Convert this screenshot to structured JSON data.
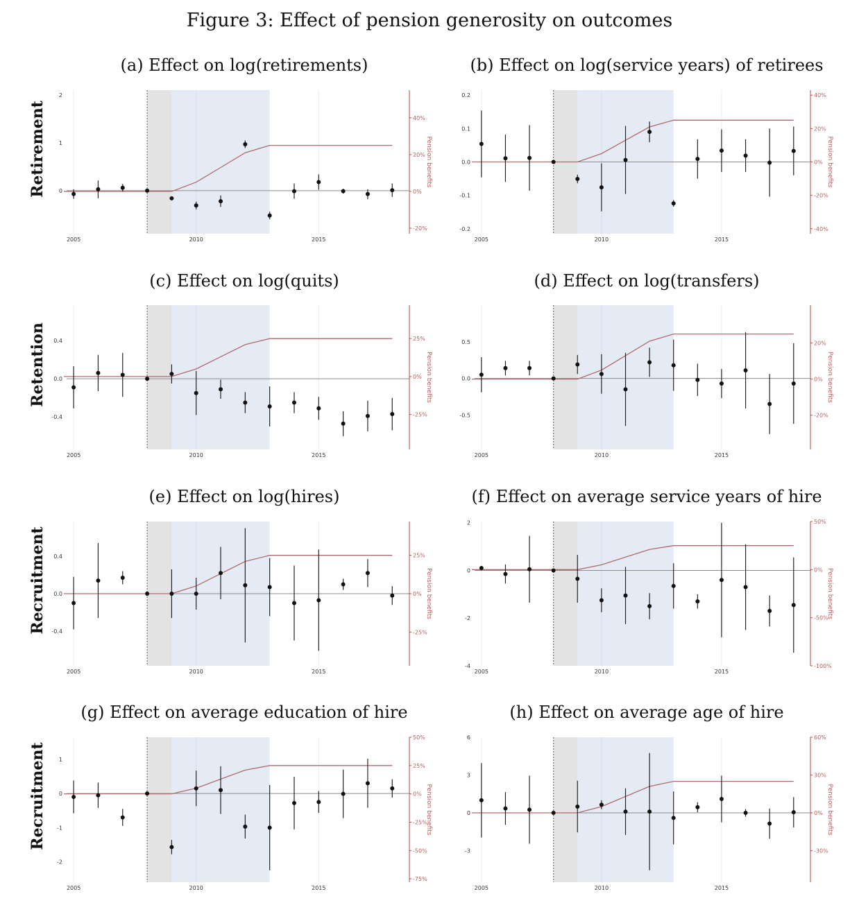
{
  "figure_title": "Figure 3: Effect of pension generosity on outcomes",
  "row_labels": [
    "Retirement",
    "Retention",
    "Recruitment",
    "Recruitment"
  ],
  "colors": {
    "point": "#111111",
    "pension_line": "#b06a6f",
    "shade_gray": "#e3e3e3",
    "shade_blue": "#e4ebf5",
    "right_axis": "#b04a4a",
    "zero_line": "#8a8a8a"
  },
  "chart_data": [
    {
      "panel": "(a)",
      "type": "scatter",
      "title": "(a) Effect on log(retirements)",
      "right_axis_label": "Pension benefits",
      "xticks": [
        2005,
        2010,
        2015
      ],
      "xlim": [
        2004.6,
        2018.7
      ],
      "yticks": [
        {
          "v": 2,
          "l": "2"
        },
        {
          "v": 1,
          "l": "1"
        },
        {
          "v": 0,
          "l": "0"
        }
      ],
      "ylim": [
        -0.9,
        2.1
      ],
      "rticks": [
        {
          "v": 40,
          "l": "40%"
        },
        {
          "v": 20,
          "l": "20%"
        },
        {
          "v": 0,
          "l": "0%"
        },
        {
          "v": -20,
          "l": "-20%"
        }
      ],
      "rlim": [
        -23,
        55
      ],
      "x": [
        2005,
        2006,
        2007,
        2008,
        2009,
        2010,
        2011,
        2012,
        2013,
        2014,
        2015,
        2016,
        2017,
        2018
      ],
      "y": [
        -0.07,
        0.03,
        0.06,
        0.0,
        -0.16,
        -0.31,
        -0.22,
        0.97,
        -0.52,
        -0.01,
        0.18,
        -0.01,
        -0.07,
        0.01
      ],
      "ci_low": [
        -0.17,
        -0.16,
        -0.02,
        0.0,
        -0.16,
        -0.39,
        -0.34,
        0.89,
        -0.6,
        -0.17,
        0.02,
        -0.06,
        -0.18,
        -0.13
      ],
      "ci_high": [
        0.03,
        0.21,
        0.14,
        0.0,
        -0.16,
        -0.23,
        -0.1,
        1.05,
        -0.44,
        0.15,
        0.34,
        0.04,
        0.03,
        0.15
      ],
      "pension": [
        0,
        0,
        0,
        0,
        0,
        5,
        13,
        21,
        25,
        25,
        25,
        25,
        25,
        25
      ],
      "pension_x": [
        2004.6,
        2009,
        2010,
        2011,
        2012,
        2013,
        2018
      ]
    },
    {
      "panel": "(b)",
      "type": "scatter",
      "title": "(b) Effect on log(service years) of retirees",
      "right_axis_label": "Pension benefits",
      "xticks": [
        2005,
        2010,
        2015
      ],
      "xlim": [
        2004.6,
        2018.7
      ],
      "yticks": [
        {
          "v": 0.2,
          "l": "0.2"
        },
        {
          "v": 0.1,
          "l": "0.1"
        },
        {
          "v": 0,
          "l": "0.0"
        },
        {
          "v": -0.1,
          "l": "-0.1"
        },
        {
          "v": -0.2,
          "l": "-0.2"
        }
      ],
      "ylim": [
        -0.215,
        0.215
      ],
      "rticks": [
        {
          "v": 40,
          "l": "40%"
        },
        {
          "v": 20,
          "l": "20%"
        },
        {
          "v": 0,
          "l": "0%"
        },
        {
          "v": -20,
          "l": "-20%"
        },
        {
          "v": -40,
          "l": "-40%"
        }
      ],
      "rlim": [
        -43,
        43
      ],
      "x": [
        2005,
        2006,
        2007,
        2008,
        2009,
        2010,
        2011,
        2012,
        2013,
        2014,
        2015,
        2016,
        2017,
        2018
      ],
      "y": [
        0.054,
        0.011,
        0.012,
        0.0,
        -0.051,
        -0.076,
        0.006,
        0.09,
        -0.124,
        0.009,
        0.034,
        0.019,
        -0.002,
        0.033
      ],
      "ci_low": [
        -0.046,
        -0.06,
        -0.086,
        0.0,
        -0.064,
        -0.148,
        -0.096,
        0.059,
        -0.134,
        -0.05,
        -0.03,
        -0.03,
        -0.104,
        -0.04
      ],
      "ci_high": [
        0.154,
        0.082,
        0.11,
        0.0,
        -0.038,
        -0.004,
        0.108,
        0.121,
        -0.114,
        0.068,
        0.098,
        0.068,
        0.1,
        0.106
      ],
      "pension": [
        0,
        0,
        0,
        0,
        0,
        5,
        13,
        21,
        25,
        25,
        25,
        25,
        25,
        25
      ],
      "pension_x": [
        2004.6,
        2009,
        2010,
        2011,
        2012,
        2013,
        2018
      ]
    },
    {
      "panel": "(c)",
      "type": "scatter",
      "title": "(c) Effect on log(quits)",
      "right_axis_label": "Pension benefits",
      "xticks": [
        2005,
        2010,
        2015
      ],
      "xlim": [
        2004.6,
        2018.7
      ],
      "yticks": [
        {
          "v": 0.4,
          "l": "0.4"
        },
        {
          "v": 0,
          "l": "0.0"
        },
        {
          "v": -0.4,
          "l": "-0.4"
        }
      ],
      "ylim": [
        -0.74,
        0.77
      ],
      "rticks": [
        {
          "v": 25,
          "l": "25%"
        },
        {
          "v": 0,
          "l": "0%"
        },
        {
          "v": -25,
          "l": "-25%"
        }
      ],
      "rlim": [
        -48,
        47
      ],
      "x": [
        2005,
        2006,
        2007,
        2008,
        2009,
        2010,
        2011,
        2012,
        2013,
        2014,
        2015,
        2016,
        2017,
        2018
      ],
      "y": [
        -0.09,
        0.06,
        0.04,
        0.0,
        0.05,
        -0.15,
        -0.11,
        -0.25,
        -0.29,
        -0.25,
        -0.31,
        -0.47,
        -0.39,
        -0.37
      ],
      "ci_low": [
        -0.31,
        -0.13,
        -0.19,
        0.0,
        -0.05,
        -0.38,
        -0.21,
        -0.36,
        -0.5,
        -0.36,
        -0.43,
        -0.6,
        -0.55,
        -0.54
      ],
      "ci_high": [
        0.13,
        0.25,
        0.27,
        0.0,
        0.15,
        0.08,
        -0.01,
        -0.14,
        -0.08,
        -0.14,
        -0.19,
        -0.34,
        -0.23,
        -0.2
      ],
      "pension": [
        0,
        0,
        0,
        0,
        0,
        5,
        13,
        21,
        25,
        25,
        25,
        25,
        25,
        25
      ],
      "pension_x": [
        2004.6,
        2009,
        2010,
        2011,
        2012,
        2013,
        2018
      ]
    },
    {
      "panel": "(d)",
      "type": "scatter",
      "title": "(d) Effect on log(transfers)",
      "right_axis_label": "Pension benefits",
      "xticks": [
        2005,
        2010,
        2015
      ],
      "xlim": [
        2004.6,
        2018.7
      ],
      "yticks": [
        {
          "v": 0.5,
          "l": "0.5"
        },
        {
          "v": 0,
          "l": "0.0"
        },
        {
          "v": -0.5,
          "l": "-0.5"
        }
      ],
      "ylim": [
        -0.97,
        1.0
      ],
      "rticks": [
        {
          "v": 20,
          "l": "20%"
        },
        {
          "v": 0,
          "l": "0%"
        },
        {
          "v": -20,
          "l": "-20%"
        }
      ],
      "rlim": [
        -39,
        41
      ],
      "x": [
        2005,
        2006,
        2007,
        2008,
        2009,
        2010,
        2011,
        2012,
        2013,
        2014,
        2015,
        2016,
        2017,
        2018
      ],
      "y": [
        0.05,
        0.14,
        0.14,
        0.0,
        0.19,
        0.06,
        -0.15,
        0.22,
        0.18,
        -0.02,
        -0.07,
        0.11,
        -0.35,
        -0.07
      ],
      "ci_low": [
        -0.19,
        0.04,
        0.04,
        0.0,
        0.06,
        -0.21,
        -0.65,
        0.02,
        -0.17,
        -0.24,
        -0.27,
        -0.41,
        -0.76,
        -0.62
      ],
      "ci_high": [
        0.29,
        0.24,
        0.24,
        0.0,
        0.32,
        0.33,
        0.35,
        0.42,
        0.53,
        0.2,
        0.13,
        0.63,
        0.06,
        0.48
      ],
      "pension": [
        0,
        0,
        0,
        0,
        0,
        5,
        13,
        21,
        25,
        25,
        25,
        25,
        25,
        25
      ],
      "pension_x": [
        2004.6,
        2009,
        2010,
        2011,
        2012,
        2013,
        2018
      ]
    },
    {
      "panel": "(e)",
      "type": "scatter",
      "title": "(e) Effect on log(hires)",
      "right_axis_label": "Pension benefits",
      "xticks": [
        2005,
        2010,
        2015
      ],
      "xlim": [
        2004.6,
        2018.7
      ],
      "yticks": [
        {
          "v": 0.4,
          "l": "0.4"
        },
        {
          "v": 0,
          "l": "0.0"
        },
        {
          "v": -0.4,
          "l": "-0.4"
        }
      ],
      "ylim": [
        -0.77,
        0.77
      ],
      "rticks": [
        {
          "v": 25,
          "l": "25%"
        },
        {
          "v": 0,
          "l": "0%"
        },
        {
          "v": -25,
          "l": "-25%"
        }
      ],
      "rlim": [
        -47,
        47
      ],
      "x": [
        2005,
        2006,
        2007,
        2008,
        2009,
        2010,
        2011,
        2012,
        2013,
        2014,
        2015,
        2016,
        2017,
        2018
      ],
      "y": [
        -0.1,
        0.14,
        0.17,
        0.0,
        0.0,
        0.0,
        0.22,
        0.09,
        0.07,
        -0.1,
        -0.07,
        0.1,
        0.22,
        -0.02
      ],
      "ci_low": [
        -0.38,
        -0.26,
        0.1,
        0.0,
        -0.26,
        -0.17,
        -0.06,
        -0.52,
        -0.24,
        -0.5,
        -0.61,
        0.04,
        0.07,
        -0.12
      ],
      "ci_high": [
        0.18,
        0.54,
        0.24,
        0.0,
        0.26,
        0.17,
        0.5,
        0.7,
        0.38,
        0.3,
        0.47,
        0.16,
        0.37,
        0.08
      ],
      "pension": [
        0,
        0,
        0,
        0,
        0,
        5,
        13,
        21,
        25,
        25,
        25,
        25,
        25,
        25
      ],
      "pension_x": [
        2004.6,
        2009,
        2010,
        2011,
        2012,
        2013,
        2018
      ]
    },
    {
      "panel": "(f)",
      "type": "scatter",
      "title": "(f) Effect on average service years of hire",
      "right_axis_label": "Pension benefits",
      "xticks": [
        2005,
        2010,
        2015
      ],
      "xlim": [
        2004.6,
        2018.7
      ],
      "yticks": [
        {
          "v": 2,
          "l": "2"
        },
        {
          "v": 0,
          "l": "0"
        },
        {
          "v": -2,
          "l": "-2"
        },
        {
          "v": -4,
          "l": "-4"
        }
      ],
      "ylim": [
        -4.0,
        2.05
      ],
      "rticks": [
        {
          "v": 50,
          "l": "50%"
        },
        {
          "v": 0,
          "l": "0%"
        },
        {
          "v": -50,
          "l": "-50%"
        },
        {
          "v": -100,
          "l": "-100%"
        }
      ],
      "rlim": [
        -100,
        50
      ],
      "x": [
        2005,
        2006,
        2007,
        2008,
        2009,
        2010,
        2011,
        2012,
        2013,
        2014,
        2015,
        2016,
        2017,
        2018
      ],
      "y": [
        0.1,
        -0.15,
        0.05,
        0.0,
        -0.35,
        -1.25,
        -1.05,
        -1.5,
        -0.65,
        -1.3,
        -0.4,
        -0.7,
        -1.7,
        -1.45
      ],
      "ci_low": [
        0.1,
        -0.55,
        -1.35,
        0.0,
        -1.35,
        -1.75,
        -2.25,
        -2.05,
        -1.6,
        -1.6,
        -2.8,
        -2.5,
        -2.35,
        -3.45
      ],
      "ci_high": [
        0.1,
        0.25,
        1.45,
        0.0,
        0.65,
        -0.75,
        0.15,
        -0.95,
        0.3,
        -1.0,
        2.0,
        1.1,
        -1.05,
        0.55
      ],
      "pension": [
        0,
        0,
        0,
        0,
        0,
        5,
        13,
        21,
        25,
        25,
        25,
        25,
        25,
        25
      ],
      "pension_x": [
        2004.6,
        2009,
        2010,
        2011,
        2012,
        2013,
        2018
      ]
    },
    {
      "panel": "(g)",
      "type": "scatter",
      "title": "(g) Effect on average education of hire",
      "right_axis_label": "Pension benefits",
      "xticks": [
        2005,
        2010,
        2015
      ],
      "xlim": [
        2004.6,
        2018.7
      ],
      "yticks": [
        {
          "v": 1,
          "l": "1"
        },
        {
          "v": 0,
          "l": "0"
        },
        {
          "v": -1,
          "l": "-1"
        },
        {
          "v": -2,
          "l": "-2"
        }
      ],
      "ylim": [
        -2.6,
        1.65
      ],
      "rticks": [
        {
          "v": 50,
          "l": "50%"
        },
        {
          "v": 25,
          "l": "25%"
        },
        {
          "v": 0,
          "l": "0%"
        },
        {
          "v": -25,
          "l": "-25%"
        },
        {
          "v": -50,
          "l": "-50%"
        },
        {
          "v": -75,
          "l": "-75%"
        }
      ],
      "rlim": [
        -78,
        50
      ],
      "x": [
        2005,
        2006,
        2007,
        2008,
        2009,
        2010,
        2011,
        2012,
        2013,
        2014,
        2015,
        2016,
        2017,
        2018
      ],
      "y": [
        -0.1,
        -0.05,
        -0.7,
        0.0,
        -1.57,
        0.15,
        0.1,
        -0.97,
        -1.0,
        -0.28,
        -0.25,
        -0.01,
        0.3,
        0.15
      ],
      "ci_low": [
        -0.58,
        -0.42,
        -0.95,
        0.0,
        -1.78,
        -0.37,
        -0.6,
        -1.32,
        -2.25,
        -1.05,
        -0.57,
        -0.72,
        -0.42,
        -0.12
      ],
      "ci_high": [
        0.38,
        0.32,
        -0.45,
        0.0,
        -1.36,
        0.67,
        0.8,
        -0.62,
        0.25,
        0.49,
        0.07,
        0.7,
        1.02,
        0.42
      ],
      "pension": [
        0,
        0,
        0,
        0,
        0,
        5,
        13,
        21,
        25,
        25,
        25,
        25,
        25,
        25
      ],
      "pension_x": [
        2004.6,
        2009,
        2010,
        2011,
        2012,
        2013,
        2018
      ]
    },
    {
      "panel": "(h)",
      "type": "scatter",
      "title": "(h) Effect on average age of hire",
      "right_axis_label": "Pension benefits",
      "xticks": [
        2005,
        2010,
        2015
      ],
      "xlim": [
        2004.6,
        2018.7
      ],
      "yticks": [
        {
          "v": 6,
          "l": "6"
        },
        {
          "v": 3,
          "l": "3"
        },
        {
          "v": 0,
          "l": "0"
        },
        {
          "v": -3,
          "l": "-3"
        }
      ],
      "ylim": [
        -5.5,
        6.0
      ],
      "rticks": [
        {
          "v": 60,
          "l": "60%"
        },
        {
          "v": 30,
          "l": "30%"
        },
        {
          "v": 0,
          "l": "0%"
        },
        {
          "v": -30,
          "l": "-30%"
        }
      ],
      "rlim": [
        -55,
        60
      ],
      "x": [
        2005,
        2006,
        2007,
        2008,
        2009,
        2010,
        2011,
        2012,
        2013,
        2014,
        2015,
        2016,
        2017,
        2018
      ],
      "y": [
        1.0,
        0.35,
        0.25,
        0.0,
        0.5,
        0.65,
        0.1,
        0.1,
        -0.4,
        0.45,
        1.1,
        0.0,
        -0.85,
        0.05
      ],
      "ci_low": [
        -1.95,
        -0.95,
        -2.45,
        0.0,
        -1.55,
        0.3,
        -1.75,
        -4.55,
        -2.5,
        0.05,
        -0.75,
        -0.3,
        -2.05,
        -1.15
      ],
      "ci_high": [
        3.95,
        1.65,
        2.95,
        0.0,
        2.55,
        1.0,
        1.95,
        4.75,
        1.7,
        0.85,
        2.95,
        0.3,
        0.35,
        1.25
      ],
      "pension": [
        0,
        0,
        0,
        0,
        0,
        5,
        13,
        21,
        25,
        25,
        25,
        25,
        25,
        25
      ],
      "pension_x": [
        2004.6,
        2009,
        2010,
        2011,
        2012,
        2013,
        2018
      ]
    }
  ]
}
